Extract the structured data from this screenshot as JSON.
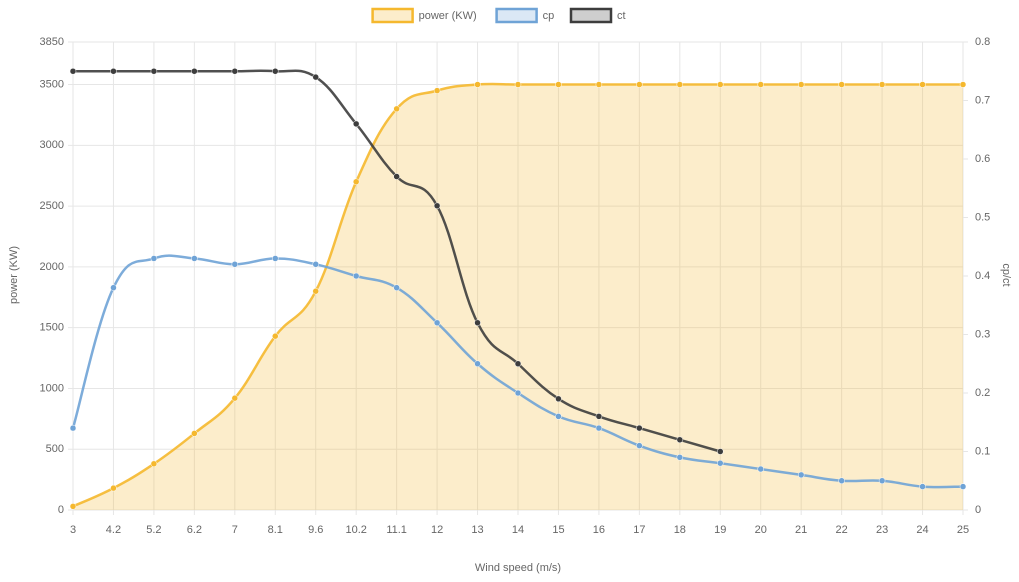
{
  "chart_data": {
    "type": "line",
    "x_label": "Wind speed (m/s)",
    "y_label": "power (KW)",
    "y2_label": "cp/ct",
    "categories": [
      "3",
      "4.2",
      "5.2",
      "6.2",
      "7",
      "8.1",
      "9.6",
      "10.2",
      "11.1",
      "12",
      "13",
      "14",
      "15",
      "16",
      "17",
      "18",
      "19",
      "20",
      "21",
      "22",
      "23",
      "24",
      "25"
    ],
    "ylim": [
      0,
      3850
    ],
    "yticks": [
      0,
      500,
      1000,
      1500,
      2000,
      2500,
      3000,
      3500,
      3850
    ],
    "y2lim": [
      0,
      0.8
    ],
    "y2ticks": [
      0,
      0.1,
      0.2,
      0.3,
      0.4,
      0.5,
      0.6,
      0.7,
      0.8
    ],
    "grid": true,
    "legend": "top",
    "series": [
      {
        "name": "power (KW)",
        "color": "#f5b82e",
        "fill": true,
        "values": [
          30,
          180,
          380,
          630,
          920,
          1430,
          1800,
          2700,
          3300,
          3450,
          3500,
          3500,
          3500,
          3500,
          3500,
          3500,
          3500,
          3500,
          3500,
          3500,
          3500,
          3500,
          3500
        ]
      },
      {
        "name": "cp",
        "color": "#6fa3d6",
        "axis": "y2",
        "values": [
          0.14,
          0.38,
          0.43,
          0.43,
          0.42,
          0.43,
          0.42,
          0.4,
          0.38,
          0.32,
          0.25,
          0.2,
          0.16,
          0.14,
          0.11,
          0.09,
          0.08,
          0.07,
          0.06,
          0.05,
          0.05,
          0.04,
          0.04
        ]
      },
      {
        "name": "ct",
        "color": "#3d3d3d",
        "axis": "y2",
        "values": [
          0.75,
          0.75,
          0.75,
          0.75,
          0.75,
          0.75,
          0.74,
          0.66,
          0.57,
          0.52,
          0.32,
          0.25,
          0.19,
          0.16,
          0.14,
          0.12,
          0.1,
          null,
          null,
          null,
          null,
          null,
          null
        ]
      }
    ]
  }
}
